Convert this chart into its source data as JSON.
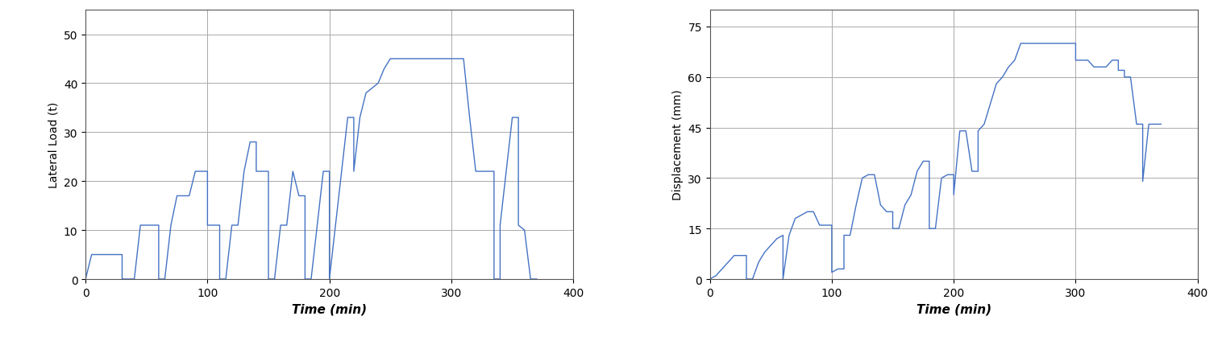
{
  "load_time": [
    0,
    5,
    10,
    15,
    20,
    25,
    30,
    30,
    35,
    40,
    45,
    50,
    55,
    60,
    60,
    65,
    70,
    75,
    80,
    85,
    90,
    95,
    100,
    100,
    105,
    110,
    110,
    115,
    120,
    125,
    130,
    135,
    140,
    140,
    145,
    150,
    150,
    155,
    160,
    165,
    170,
    175,
    180,
    180,
    185,
    190,
    195,
    200,
    200,
    205,
    210,
    215,
    220,
    220,
    225,
    230,
    235,
    240,
    245,
    250,
    255,
    260,
    260,
    265,
    270,
    275,
    280,
    285,
    290,
    295,
    300,
    300,
    305,
    310,
    315,
    320,
    325,
    325,
    330,
    335,
    335,
    340,
    340,
    345,
    350,
    355,
    355,
    360,
    365,
    370
  ],
  "load_values": [
    0,
    5,
    5,
    5,
    5,
    5,
    5,
    0,
    0,
    0,
    11,
    11,
    11,
    11,
    0,
    0,
    11,
    17,
    17,
    17,
    22,
    22,
    22,
    11,
    11,
    11,
    0,
    0,
    11,
    11,
    22,
    28,
    28,
    22,
    22,
    22,
    0,
    0,
    11,
    11,
    22,
    17,
    17,
    0,
    0,
    11,
    22,
    22,
    0,
    11,
    22,
    33,
    33,
    22,
    33,
    38,
    39,
    40,
    43,
    45,
    45,
    45,
    45,
    45,
    45,
    45,
    45,
    45,
    45,
    45,
    45,
    45,
    45,
    45,
    33,
    22,
    22,
    22,
    22,
    22,
    0,
    0,
    11,
    22,
    33,
    33,
    11,
    10,
    0,
    0
  ],
  "disp_time": [
    0,
    5,
    10,
    15,
    20,
    25,
    30,
    30,
    35,
    40,
    45,
    50,
    55,
    60,
    60,
    65,
    70,
    75,
    80,
    85,
    90,
    95,
    100,
    100,
    105,
    110,
    110,
    115,
    120,
    125,
    130,
    135,
    140,
    140,
    145,
    150,
    150,
    155,
    160,
    165,
    170,
    175,
    180,
    180,
    185,
    190,
    195,
    200,
    200,
    205,
    210,
    215,
    220,
    220,
    225,
    230,
    235,
    240,
    245,
    250,
    255,
    260,
    260,
    265,
    270,
    275,
    280,
    285,
    290,
    295,
    300,
    300,
    305,
    310,
    315,
    320,
    325,
    325,
    330,
    335,
    335,
    340,
    340,
    345,
    350,
    355,
    355,
    360,
    365,
    370
  ],
  "disp_values": [
    0,
    1,
    3,
    5,
    7,
    7,
    7,
    0,
    0,
    5,
    8,
    10,
    12,
    13,
    0,
    13,
    18,
    19,
    20,
    20,
    16,
    16,
    16,
    2,
    3,
    3,
    13,
    13,
    22,
    30,
    31,
    31,
    22,
    22,
    20,
    20,
    15,
    15,
    22,
    25,
    32,
    35,
    35,
    15,
    15,
    30,
    31,
    31,
    25,
    44,
    44,
    32,
    32,
    44,
    46,
    52,
    58,
    60,
    63,
    65,
    70,
    70,
    70,
    70,
    70,
    70,
    70,
    70,
    70,
    70,
    70,
    65,
    65,
    65,
    63,
    63,
    63,
    63,
    65,
    65,
    62,
    62,
    60,
    60,
    46,
    46,
    29,
    46,
    46,
    46
  ],
  "line_color": "#4472c4",
  "load_ylabel": "Lateral Load (t)",
  "disp_ylabel": "Displacement (mm)",
  "xlabel": "Time (min)",
  "load_ylim": [
    0,
    55
  ],
  "load_yticks": [
    0,
    10,
    20,
    30,
    40,
    50
  ],
  "disp_ylim": [
    0,
    80
  ],
  "disp_yticks": [
    0,
    15,
    30,
    45,
    60,
    75
  ],
  "xlim": [
    0,
    400
  ],
  "xticks": [
    0,
    100,
    200,
    300,
    400
  ],
  "grid_color": "#aaaaaa",
  "xlabel_fontsize": 11,
  "ylabel_fontsize": 10,
  "tick_fontsize": 10
}
